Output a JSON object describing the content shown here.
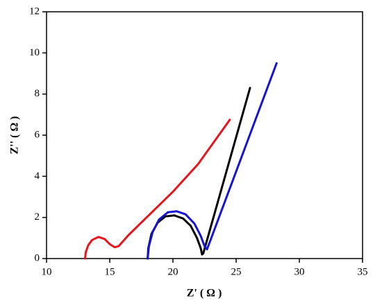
{
  "chart_data": {
    "type": "line",
    "x_label": "Z' ( Ω )",
    "y_label": "Z'' ( Ω )",
    "xlim": [
      10,
      35
    ],
    "xticks": [
      10,
      15,
      20,
      25,
      30,
      35
    ],
    "ylim": [
      0,
      12
    ],
    "yticks": [
      0,
      2,
      4,
      6,
      8,
      10,
      12
    ],
    "series": [
      {
        "color": "#e8141b",
        "x": [
          13.05,
          13.1,
          13.3,
          13.6,
          14.1,
          14.6,
          15.0,
          15.4,
          15.7,
          16.5,
          18,
          20,
          22,
          24.5
        ],
        "values": [
          0,
          0.3,
          0.65,
          0.9,
          1.05,
          0.95,
          0.7,
          0.55,
          0.6,
          1.15,
          2.05,
          3.25,
          4.6,
          6.75
        ]
      },
      {
        "color": "#000000",
        "x": [
          18.0,
          18.05,
          18.3,
          18.8,
          19.4,
          20.1,
          20.8,
          21.4,
          21.9,
          22.2,
          22.3,
          22.4,
          26.1
        ],
        "values": [
          0,
          0.5,
          1.2,
          1.75,
          2.05,
          2.1,
          1.95,
          1.6,
          1.0,
          0.5,
          0.2,
          0.25,
          8.3
        ]
      },
      {
        "color": "#1414d2",
        "x": [
          18.0,
          18.1,
          18.4,
          18.9,
          19.6,
          20.3,
          21.0,
          21.7,
          22.2,
          22.5,
          22.7,
          28.2
        ],
        "values": [
          0,
          0.6,
          1.3,
          1.9,
          2.25,
          2.3,
          2.15,
          1.7,
          1.1,
          0.6,
          0.45,
          9.5
        ]
      }
    ]
  }
}
